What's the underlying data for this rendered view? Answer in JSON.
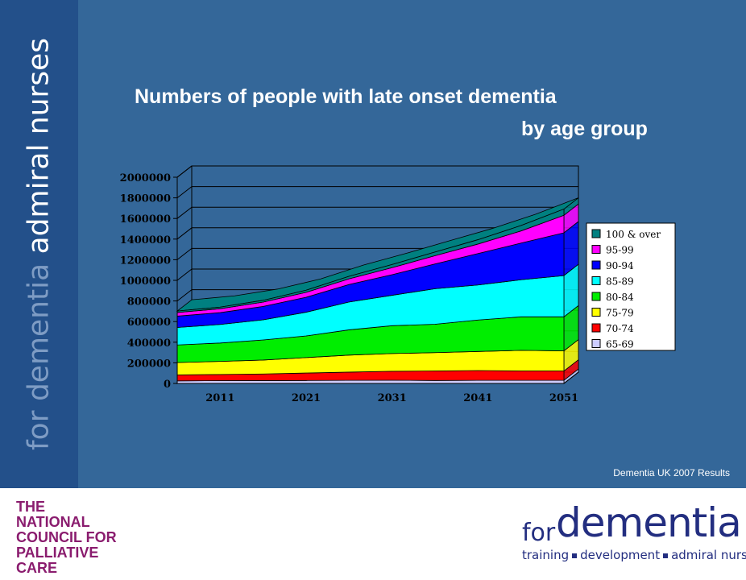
{
  "sidebar": {
    "tagline_light": "for dementia",
    "tagline_strong": "admiral nurses"
  },
  "title_line1": "Numbers of people with late onset dementia",
  "title_line2": "by age group",
  "source_note": "Dementia UK  2007 Results",
  "chart_data": {
    "type": "area",
    "stacked": true,
    "three_d": true,
    "x": [
      2006,
      2011,
      2016,
      2021,
      2026,
      2031,
      2036,
      2041,
      2046,
      2051
    ],
    "x_tick_labels": [
      "2011",
      "2021",
      "2031",
      "2041",
      "2051"
    ],
    "x_tick_values": [
      2011,
      2021,
      2031,
      2041,
      2051
    ],
    "ylim": [
      0,
      2000000
    ],
    "y_tick_labels": [
      "0",
      "200000",
      "400000",
      "600000",
      "800000",
      "1000000",
      "1200000",
      "1400000",
      "1600000",
      "1800000",
      "2000000"
    ],
    "grid": true,
    "legend_position": "right",
    "title": "",
    "xlabel": "",
    "ylabel": "",
    "series": [
      {
        "name": "65-69",
        "color": "#ccccff",
        "values": [
          25000,
          27000,
          28000,
          29000,
          30000,
          31000,
          29000,
          30000,
          30000,
          31000
        ]
      },
      {
        "name": "70-74",
        "color": "#ff0000",
        "values": [
          58000,
          60000,
          64000,
          72000,
          80000,
          87000,
          92000,
          95000,
          91000,
          90000
        ]
      },
      {
        "name": "75-79",
        "color": "#ffff00",
        "values": [
          120000,
          127000,
          135000,
          150000,
          165000,
          172000,
          178000,
          185000,
          200000,
          195000
        ]
      },
      {
        "name": "80-84",
        "color": "#00ee00",
        "values": [
          170000,
          178000,
          195000,
          210000,
          245000,
          270000,
          275000,
          305000,
          325000,
          330000
        ]
      },
      {
        "name": "85-89",
        "color": "#00ffff",
        "values": [
          170000,
          180000,
          195000,
          230000,
          270000,
          295000,
          345000,
          340000,
          360000,
          400000
        ]
      },
      {
        "name": "90-94",
        "color": "#0000ff",
        "values": [
          110000,
          115000,
          130000,
          145000,
          170000,
          200000,
          240000,
          305000,
          355000,
          415000
        ]
      },
      {
        "name": "95-99",
        "color": "#ff00ff",
        "values": [
          35000,
          38000,
          42000,
          48000,
          55000,
          68000,
          80000,
          92000,
          118000,
          170000
        ]
      },
      {
        "name": "100 & over",
        "color": "#008080",
        "values": [
          14000,
          15000,
          17000,
          20000,
          24000,
          30000,
          35000,
          42000,
          52000,
          60000
        ]
      }
    ]
  },
  "footer": {
    "ncpc_lines": [
      "THE",
      "NATIONAL",
      "COUNCIL FOR",
      "PALLIATIVE",
      "CARE"
    ],
    "logo_for": "for",
    "logo_dementia": "dementia",
    "logo_tag1": "training",
    "logo_tag2": "development",
    "logo_tag3": "admiral nurses"
  }
}
